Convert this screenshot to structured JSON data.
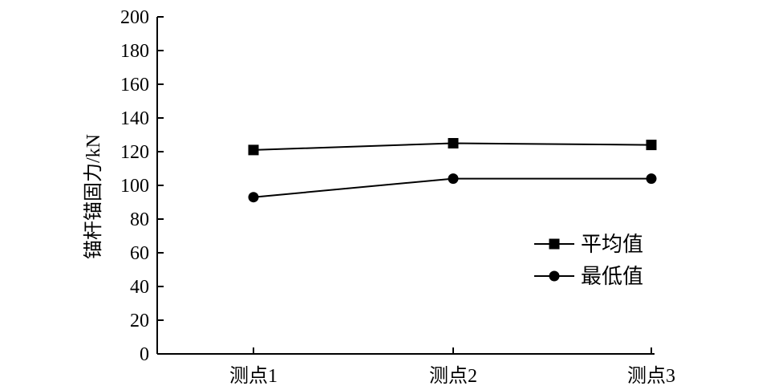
{
  "chart_data": {
    "type": "line",
    "title": "",
    "xlabel": "",
    "ylabel": "锚杆锚固力/kN",
    "categories": [
      "测点1",
      "测点2",
      "测点3"
    ],
    "ylim": [
      0,
      200
    ],
    "yticks": [
      "0",
      "20",
      "40",
      "60",
      "80",
      "100",
      "120",
      "140",
      "160",
      "180",
      "200"
    ],
    "grid": false,
    "legend_position": "right",
    "series": [
      {
        "name": "平均值",
        "marker": "square",
        "color": "#000000",
        "values": [
          121,
          125,
          124
        ]
      },
      {
        "name": "最低值",
        "marker": "circle",
        "color": "#000000",
        "values": [
          93,
          104,
          104
        ]
      }
    ]
  }
}
